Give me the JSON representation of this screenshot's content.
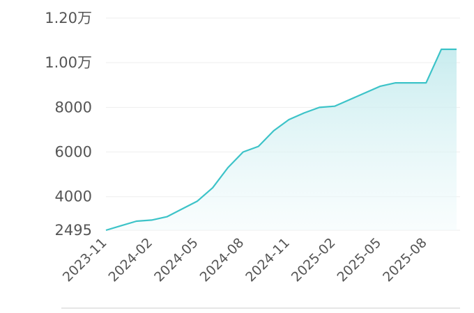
{
  "chart_data": {
    "type": "area",
    "title": "",
    "xlabel": "",
    "ylabel": "",
    "ylim": [
      2495,
      12000
    ],
    "y_ticks": [
      {
        "value": 12000,
        "label": "1.20万"
      },
      {
        "value": 10000,
        "label": "1.00万"
      },
      {
        "value": 8000,
        "label": "8000"
      },
      {
        "value": 6000,
        "label": "6000"
      },
      {
        "value": 4000,
        "label": "4000"
      },
      {
        "value": 2495,
        "label": "2495"
      }
    ],
    "x_ticks": [
      "2023-11",
      "2024-02",
      "2024-05",
      "2024-08",
      "2024-11",
      "2025-02",
      "2025-05",
      "2025-08"
    ],
    "x": [
      "2023-11",
      "2023-12",
      "2024-01",
      "2024-02",
      "2024-03",
      "2024-04",
      "2024-05",
      "2024-06",
      "2024-07",
      "2024-08",
      "2024-09",
      "2024-10",
      "2024-11",
      "2024-12",
      "2025-01",
      "2025-02",
      "2025-03",
      "2025-04",
      "2025-05",
      "2025-06",
      "2025-07",
      "2025-08",
      "2025-09",
      "2025-10"
    ],
    "values": [
      2495,
      2700,
      2900,
      2950,
      3100,
      3450,
      3800,
      4400,
      5300,
      6000,
      6250,
      6950,
      7450,
      7750,
      8000,
      8050,
      8350,
      8650,
      8950,
      9100,
      9100,
      9100,
      10600,
      10600
    ],
    "colors": {
      "line": "#3cc3c8",
      "fill_top": "#bfe9ec",
      "fill_bottom": "#f2fbfc",
      "grid": "#eeeeee",
      "tick_text": "#555555"
    },
    "grid": true,
    "legend": "none"
  }
}
